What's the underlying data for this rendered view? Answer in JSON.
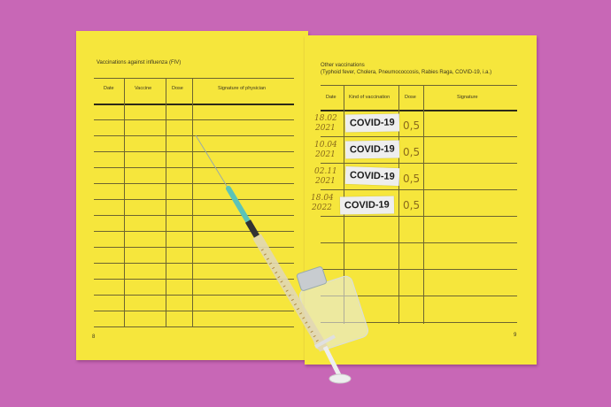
{
  "left_page": {
    "title": "Vaccinations against influenza (FIV)",
    "columns": [
      "Date",
      "Vaccine",
      "Dose",
      "Signature of physician"
    ],
    "page_number": "8"
  },
  "right_page": {
    "title": "Other vaccinations",
    "subtitle": "(Typhoid fever, Cholera, Pneumococcosis, Rabies Raga, COVID-19, i.a.)",
    "columns": [
      "Date",
      "Kind of vaccination",
      "Dose",
      "Signature"
    ],
    "rows": [
      {
        "date1": "18.02",
        "date2": "2021",
        "vaccine": "COVID-19",
        "dose": "0,5"
      },
      {
        "date1": "10.04",
        "date2": "2021",
        "vaccine": "COVID-19",
        "dose": "0,5"
      },
      {
        "date1": "02.11",
        "date2": "2021",
        "vaccine": "COVID-19",
        "dose": "0,5"
      },
      {
        "date1": "18.04",
        "date2": "2022",
        "vaccine": "COVID-19",
        "dose": "0,5"
      }
    ],
    "page_number": "9"
  },
  "colors": {
    "background": "#c867b6",
    "paper": "#f6e63c",
    "label": "#eeeeee"
  }
}
